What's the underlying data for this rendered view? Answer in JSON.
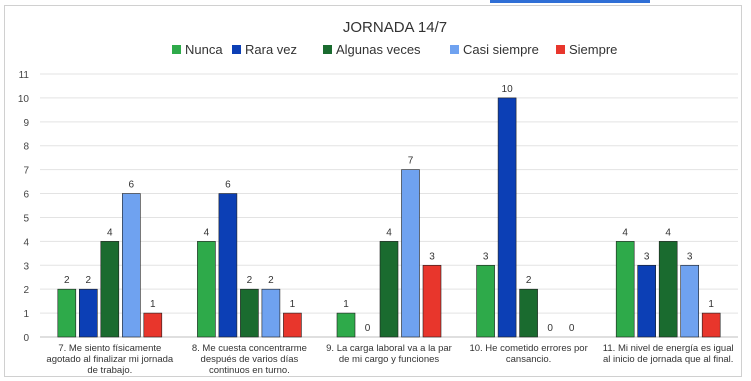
{
  "chart_data": {
    "type": "bar",
    "title": "JORNADA 14/7",
    "legend_position": "top",
    "ylim": [
      0,
      11
    ],
    "y_ticks": [
      "0",
      "1",
      "2",
      "3",
      "4",
      "5",
      "6",
      "7",
      "8",
      "9",
      "10",
      "11"
    ],
    "grid": true,
    "categories": [
      [
        "7. Me siento físicamente",
        "agotado al finalizar mi jornada",
        "de trabajo."
      ],
      [
        "8. Me cuesta concentrarme",
        "después de varios días",
        "continuos en turno."
      ],
      [
        "9. La carga laboral va a la par",
        "de mi cargo y funciones"
      ],
      [
        "10. He cometido errores por",
        "cansancio."
      ],
      [
        "11.  Mi nivel de energía es igual",
        "al inicio de jornada que al final."
      ]
    ],
    "series": [
      {
        "name": "Nunca",
        "color": "#2eaa4a",
        "values": [
          2,
          4,
          1,
          3,
          4
        ]
      },
      {
        "name": "Rara vez",
        "color": "#0c3fb5",
        "values": [
          2,
          6,
          0,
          10,
          3
        ]
      },
      {
        "name": "Algunas veces",
        "color": "#1a6b2f",
        "values": [
          4,
          2,
          4,
          2,
          4
        ]
      },
      {
        "name": "Casi siempre",
        "color": "#6fa2f0",
        "values": [
          6,
          2,
          7,
          0,
          3
        ]
      },
      {
        "name": "Siempre",
        "color": "#e8362c",
        "values": [
          1,
          1,
          3,
          0,
          1
        ]
      }
    ]
  }
}
